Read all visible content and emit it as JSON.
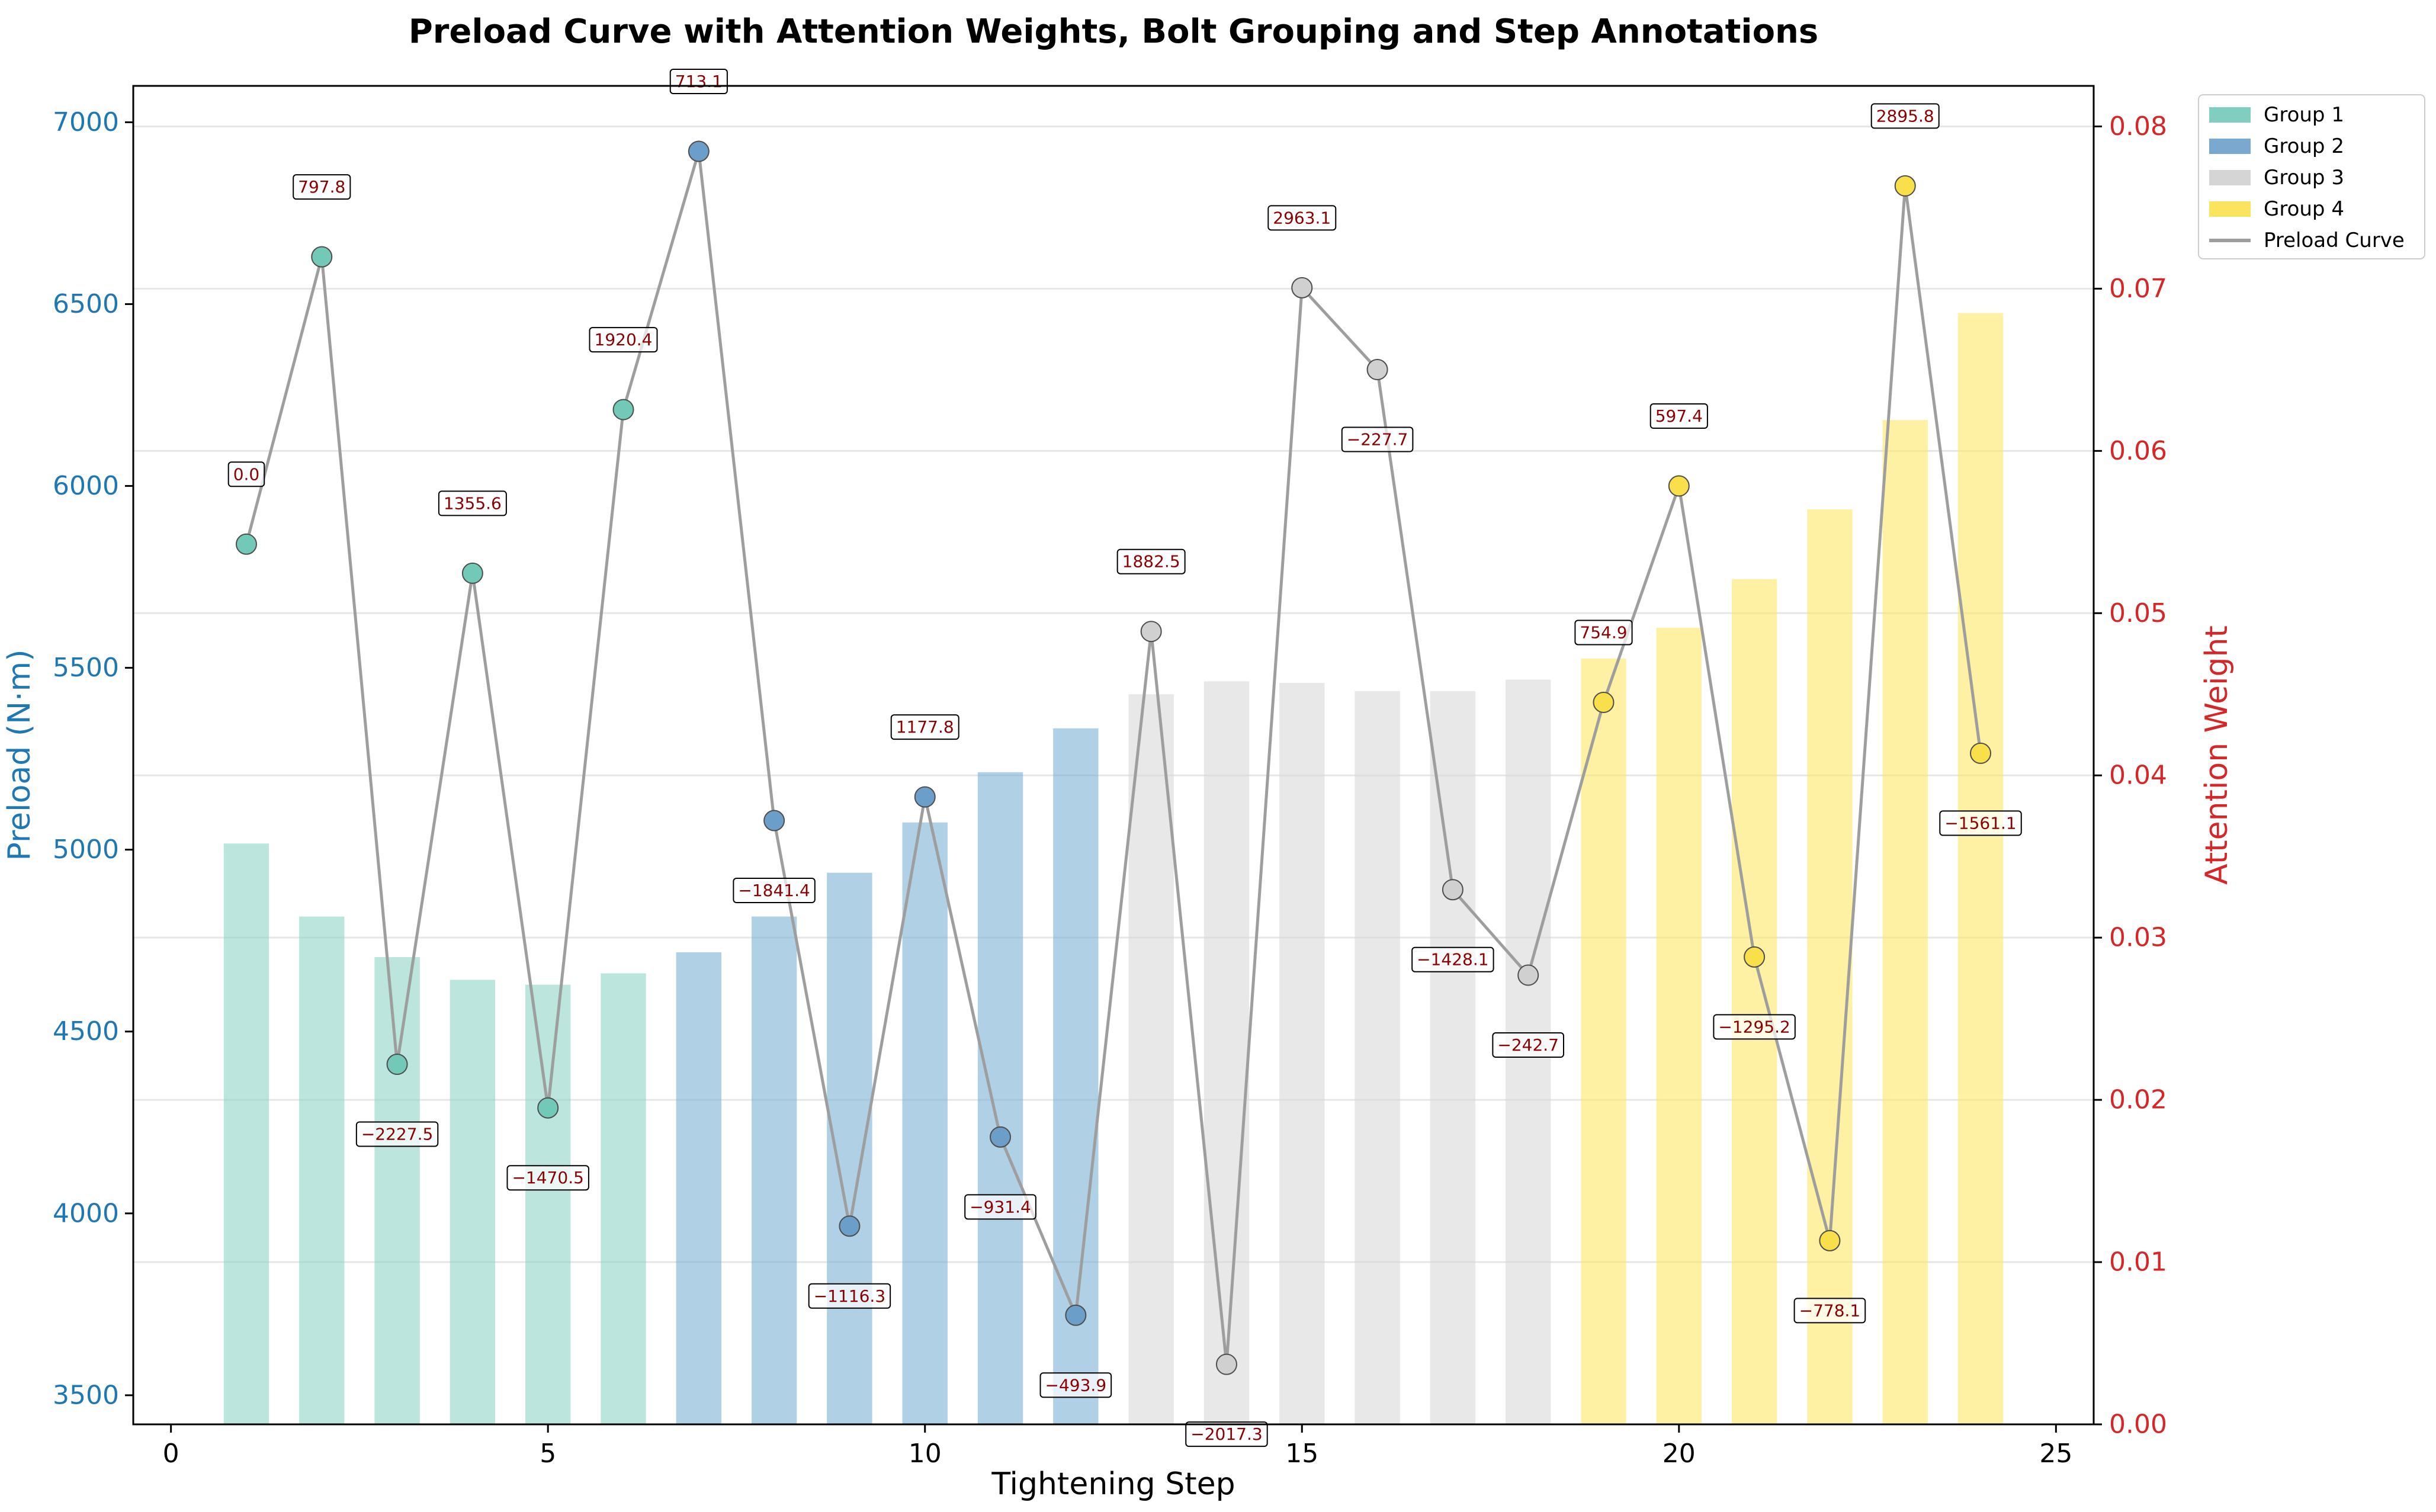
{
  "chart_data": {
    "type": "bar+line",
    "title": "Preload Curve with Attention Weights, Bolt Grouping and Step Annotations",
    "xlabel": "Tightening Step",
    "ylabel_left": "Preload (N·m)",
    "ylabel_right": "Attention Weight",
    "xlim": [
      -0.5,
      25.5
    ],
    "ylim_left": [
      3420,
      7100
    ],
    "ylim_right": [
      0.0,
      0.0825
    ],
    "x_ticks": [
      0,
      5,
      10,
      15,
      20,
      25
    ],
    "y_left_ticks": [
      3500,
      4000,
      4500,
      5000,
      5500,
      6000,
      6500,
      7000
    ],
    "y_right_ticks": [
      0.0,
      0.01,
      0.02,
      0.03,
      0.04,
      0.05,
      0.06,
      0.07,
      0.08
    ],
    "steps": [
      1,
      2,
      3,
      4,
      5,
      6,
      7,
      8,
      9,
      10,
      11,
      12,
      13,
      14,
      15,
      16,
      17,
      18,
      19,
      20,
      21,
      22,
      23,
      24
    ],
    "groups": [
      1,
      1,
      1,
      1,
      1,
      1,
      2,
      2,
      2,
      2,
      2,
      2,
      3,
      3,
      3,
      3,
      3,
      3,
      4,
      4,
      4,
      4,
      4,
      4
    ],
    "attention": [
      0.0358,
      0.0313,
      0.0288,
      0.0274,
      0.0271,
      0.0278,
      0.0291,
      0.0313,
      0.034,
      0.0371,
      0.0402,
      0.0429,
      0.045,
      0.0458,
      0.0457,
      0.0452,
      0.0452,
      0.0459,
      0.0472,
      0.0491,
      0.0521,
      0.0564,
      0.0619,
      0.0685
    ],
    "preload": [
      5840,
      6630,
      4410,
      5760,
      4290,
      6210,
      6920,
      5080,
      3965,
      5145,
      4210,
      3720,
      5600,
      3585,
      6545,
      6320,
      4890,
      4655,
      5405,
      6000,
      4705,
      3925,
      6825,
      5265
    ],
    "annotations": [
      "0.0",
      "797.8",
      "−2227.5",
      "1355.6",
      "−1470.5",
      "1920.4",
      "713.1",
      "−1841.4",
      "−1116.3",
      "1177.8",
      "−931.4",
      "−493.9",
      "1882.5",
      "−2017.3",
      "2963.1",
      "−227.7",
      "−1428.1",
      "−242.7",
      "754.9",
      "597.4",
      "−1295.2",
      "−778.1",
      "2895.8",
      "−1561.1"
    ],
    "legend": [
      {
        "label": "Group 1",
        "kind": "patch"
      },
      {
        "label": "Group 2",
        "kind": "patch"
      },
      {
        "label": "Group 3",
        "kind": "patch"
      },
      {
        "label": "Group 4",
        "kind": "patch"
      },
      {
        "label": "Preload Curve",
        "kind": "line"
      }
    ],
    "legend_position": "outside-top-right",
    "grid": true,
    "colors": {
      "group_fill": [
        "#8dd3c7",
        "#7ab0d4",
        "#d9d9d9",
        "#fde866"
      ],
      "group_marker": [
        "#72c9b8",
        "#6b9fc9",
        "#d0d0d0",
        "#f9e04b"
      ],
      "line": "#9e9e9e",
      "left_axis": "#1f77b4",
      "right_axis": "#d62728",
      "annotation_text": "#8b0000"
    }
  }
}
